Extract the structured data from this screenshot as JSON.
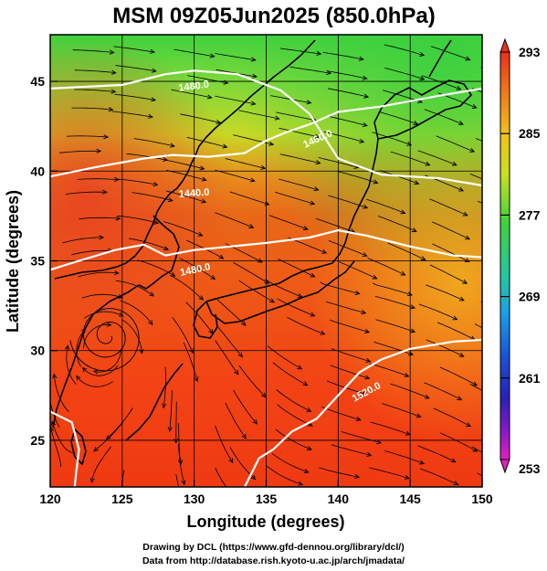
{
  "title": "MSM 09Z05Jun2025 (850.0hPa)",
  "xlabel": "Longitude (degrees)",
  "ylabel": "Latitude  (degrees)",
  "x_ticks": [
    "120",
    "125",
    "130",
    "135",
    "140",
    "145",
    "150"
  ],
  "y_ticks": [
    "25",
    "30",
    "35",
    "40",
    "45"
  ],
  "colorbar": {
    "labels": [
      "293",
      "285",
      "277",
      "269",
      "261",
      "253"
    ],
    "colors": [
      "#e8301a",
      "#f07a18",
      "#f2c21a",
      "#c8e020",
      "#3fd13c",
      "#22c8a0",
      "#1aa0e8",
      "#1a50d8",
      "#2a20b8",
      "#8a18c8",
      "#e020c0"
    ]
  },
  "contour_labels": [
    "1480.0",
    "1440.0",
    "1460.0",
    "1480.0",
    "1520.0"
  ],
  "credits": {
    "line1": "Drawing by DCL (https://www.gfd-dennou.org/library/dcl/)",
    "line2": "Data from http://database.rish.kyoto-u.ac.jp/arch/jmadata/"
  },
  "chart_data": {
    "type": "heatmap",
    "title": "MSM 09Z05Jun2025 (850.0hPa)",
    "xlabel": "Longitude (degrees)",
    "ylabel": "Latitude  (degrees)",
    "xlim": [
      120,
      150
    ],
    "ylim": [
      22.4,
      47.6
    ],
    "x_ticks": [
      120,
      125,
      130,
      135,
      140,
      145,
      150
    ],
    "y_ticks": [
      25,
      30,
      35,
      40,
      45
    ],
    "colorbar_range": [
      253,
      293
    ],
    "colorbar_ticks": [
      293,
      285,
      277,
      269,
      261,
      253
    ],
    "grid": true,
    "overlays": [
      "streamlines",
      "geopotential height contours",
      "coastlines"
    ],
    "contours": [
      {
        "label": "1480.0",
        "lon": [
          120,
          122,
          124.5,
          126.5,
          128,
          130,
          132.5,
          135,
          138,
          140,
          142,
          145,
          148,
          150
        ],
        "lat": [
          34.5,
          35,
          35.6,
          35.9,
          35.3,
          35.6,
          35.8,
          36,
          36.3,
          36.7,
          36.4,
          35.8,
          35.3,
          35.2
        ]
      },
      {
        "label": "1440.0",
        "lon": [
          120,
          123,
          126.5,
          128.5,
          131,
          133.5,
          135,
          136.5,
          138,
          140,
          143,
          147,
          150
        ],
        "lat": [
          39.7,
          40.2,
          40.7,
          40.9,
          40.8,
          41.0,
          41.7,
          42.2,
          42.6,
          43.3,
          43.6,
          44.2,
          44.6
        ]
      },
      {
        "label": "1460.0",
        "lon": [
          120,
          125,
          128,
          130,
          133,
          136,
          138,
          140,
          143,
          147,
          150
        ],
        "lat": [
          44.6,
          44.8,
          45.4,
          45.6,
          45.4,
          44.5,
          43.2,
          40.7,
          39.8,
          39.6,
          39.2
        ]
      },
      {
        "label": "1520.0",
        "lon": [
          133.5,
          134.5,
          135.5,
          136.8,
          138.5,
          140,
          141.5,
          143,
          145,
          148,
          150
        ],
        "lat": [
          22.4,
          24.0,
          24.5,
          25.5,
          26.2,
          27.5,
          28.8,
          29.5,
          30.1,
          30.5,
          30.6
        ]
      },
      {
        "label": "",
        "lon": [
          120,
          121.5,
          122,
          121.8,
          121.7
        ],
        "lat": [
          26.6,
          26.0,
          24.5,
          23.2,
          22.4
        ]
      }
    ],
    "temperature_field_description_levels": [
      {
        "lat": 45,
        "value": 280
      },
      {
        "lat": 40,
        "value": 285
      },
      {
        "lat": 35,
        "value": 287
      },
      {
        "lat": 30,
        "value": 290
      },
      {
        "lat": 25,
        "value": 291
      }
    ]
  }
}
